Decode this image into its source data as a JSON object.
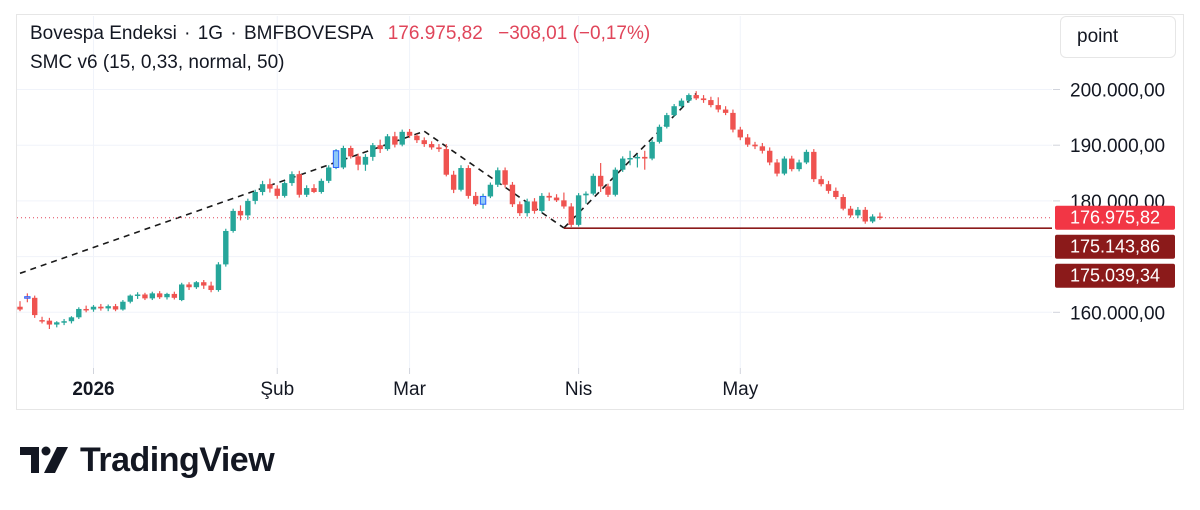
{
  "header": {
    "symbol": "Bovespa Endeksi",
    "interval": "1G",
    "exchange": "BMFBOVESPA",
    "separator": "·",
    "last_price": "176.975,82",
    "change": "−308,01 (−0,17%)"
  },
  "indicator": {
    "label": "SMC v6 (15, 0,33, normal, 50)"
  },
  "unit_button": {
    "label": "point"
  },
  "brand": {
    "name": "TradingView"
  },
  "colors": {
    "up": "#26a69a",
    "down": "#ef5350",
    "bos": "#1a1a1a",
    "level": "#8b1a1a",
    "price_line": "#e0455a"
  },
  "chart_data": {
    "type": "candlestick",
    "ylim": [
      150000,
      203500
    ],
    "y_ticks": [
      160000,
      180000,
      190000,
      200000
    ],
    "y_tick_labels": [
      "160.000,00",
      "180.000,00",
      "190.000,00",
      "200.000,00"
    ],
    "x_ticks": [
      {
        "index": 10,
        "label": "2026",
        "bold": true
      },
      {
        "index": 35,
        "label": "Şub",
        "bold": false
      },
      {
        "index": 53,
        "label": "Mar",
        "bold": false
      },
      {
        "index": 76,
        "label": "Nis",
        "bold": false
      },
      {
        "index": 98,
        "label": "May",
        "bold": false
      }
    ],
    "price_labels": [
      {
        "label": "176.975,82",
        "value": 176975.82,
        "style": "last"
      },
      {
        "label": "175.143,86",
        "value": 175143.86,
        "style": "level"
      },
      {
        "label": "175.039,34",
        "value": 175039.34,
        "style": "level"
      }
    ],
    "candles": [
      [
        161000,
        162000,
        160200,
        160500
      ],
      [
        162800,
        163400,
        161800,
        162600
      ],
      [
        162600,
        163000,
        159000,
        159500
      ],
      [
        158600,
        159200,
        158000,
        158500
      ],
      [
        158500,
        159000,
        157000,
        157800
      ],
      [
        157800,
        158400,
        157300,
        158200
      ],
      [
        158200,
        158800,
        157700,
        158400
      ],
      [
        158400,
        159300,
        158000,
        159100
      ],
      [
        159100,
        160900,
        158800,
        160600
      ],
      [
        160600,
        161200,
        160000,
        160500
      ],
      [
        160500,
        161300,
        160100,
        161000
      ],
      [
        161000,
        161500,
        160300,
        160700
      ],
      [
        160700,
        161400,
        160200,
        161100
      ],
      [
        161100,
        161500,
        160200,
        160500
      ],
      [
        160500,
        162200,
        160300,
        161900
      ],
      [
        161900,
        163200,
        161600,
        163000
      ],
      [
        163000,
        163600,
        162400,
        163200
      ],
      [
        163200,
        163500,
        162200,
        162500
      ],
      [
        162500,
        163700,
        162200,
        163400
      ],
      [
        163400,
        163800,
        162400,
        162700
      ],
      [
        162700,
        163500,
        162300,
        163300
      ],
      [
        163300,
        163700,
        162300,
        162600
      ],
      [
        162200,
        165300,
        162000,
        165000
      ],
      [
        165000,
        165400,
        164000,
        164500
      ],
      [
        164500,
        165600,
        164200,
        165400
      ],
      [
        165400,
        165800,
        164200,
        164800
      ],
      [
        164800,
        165500,
        163600,
        164000
      ],
      [
        164000,
        169000,
        163700,
        168600
      ],
      [
        168600,
        175000,
        168200,
        174600
      ],
      [
        174600,
        178600,
        174300,
        178200
      ],
      [
        178200,
        179200,
        176500,
        177400
      ],
      [
        177400,
        180400,
        176600,
        180000
      ],
      [
        180000,
        182000,
        179400,
        181600
      ],
      [
        181600,
        183600,
        181000,
        183000
      ],
      [
        183000,
        184000,
        181500,
        182200
      ],
      [
        182200,
        182800,
        180400,
        180900
      ],
      [
        180900,
        183500,
        180600,
        183200
      ],
      [
        183200,
        185300,
        182700,
        184800
      ],
      [
        184800,
        185400,
        180600,
        181100
      ],
      [
        181100,
        182800,
        180700,
        182300
      ],
      [
        182300,
        183000,
        181400,
        181600
      ],
      [
        181600,
        184000,
        181300,
        183600
      ],
      [
        183600,
        186400,
        183200,
        186000
      ],
      [
        186000,
        189300,
        185700,
        189000
      ],
      [
        186000,
        189900,
        185700,
        189500
      ],
      [
        189500,
        189900,
        187600,
        188000
      ],
      [
        188000,
        188500,
        185500,
        186500
      ],
      [
        186500,
        188400,
        185400,
        187900
      ],
      [
        187900,
        190400,
        187200,
        190000
      ],
      [
        190000,
        191000,
        188600,
        189300
      ],
      [
        189300,
        192000,
        189000,
        191600
      ],
      [
        191600,
        192400,
        189600,
        190100
      ],
      [
        190100,
        192800,
        189800,
        192400
      ],
      [
        192400,
        192900,
        191300,
        191700
      ],
      [
        191700,
        192000,
        190400,
        190900
      ],
      [
        190900,
        191400,
        189700,
        190200
      ],
      [
        190200,
        190700,
        189200,
        189600
      ],
      [
        189600,
        190200,
        188800,
        189300
      ],
      [
        189300,
        190200,
        184400,
        184700
      ],
      [
        184700,
        185400,
        181400,
        182000
      ],
      [
        182000,
        186400,
        181700,
        185900
      ],
      [
        185900,
        186400,
        180400,
        180900
      ],
      [
        180900,
        181600,
        179100,
        179400
      ],
      [
        179400,
        181300,
        178600,
        180800
      ],
      [
        180800,
        183300,
        180500,
        182900
      ],
      [
        182900,
        186000,
        182500,
        185500
      ],
      [
        185500,
        186000,
        182400,
        182900
      ],
      [
        182900,
        183400,
        178900,
        179400
      ],
      [
        179400,
        179900,
        177300,
        177800
      ],
      [
        177800,
        180400,
        177200,
        179900
      ],
      [
        179900,
        180500,
        177700,
        178200
      ],
      [
        178200,
        181400,
        177900,
        180900
      ],
      [
        180900,
        181500,
        180000,
        180600
      ],
      [
        180600,
        181200,
        179800,
        180100
      ],
      [
        180100,
        181500,
        178600,
        179000
      ],
      [
        179000,
        179600,
        175300,
        175700
      ],
      [
        175700,
        181400,
        175400,
        181000
      ],
      [
        181000,
        181700,
        179500,
        181300
      ],
      [
        181300,
        184900,
        181000,
        184500
      ],
      [
        184500,
        186800,
        181600,
        182600
      ],
      [
        182600,
        183100,
        180700,
        181100
      ],
      [
        181100,
        186000,
        180800,
        185600
      ],
      [
        185600,
        188000,
        185200,
        187600
      ],
      [
        187600,
        189000,
        186400,
        187700
      ],
      [
        187700,
        188400,
        186000,
        187900
      ],
      [
        187900,
        189000,
        185600,
        187600
      ],
      [
        187600,
        191000,
        187300,
        190600
      ],
      [
        190600,
        193700,
        190300,
        193300
      ],
      [
        193300,
        195800,
        193000,
        195400
      ],
      [
        195400,
        197400,
        195100,
        197000
      ],
      [
        197000,
        198400,
        196700,
        198000
      ],
      [
        198000,
        199300,
        197600,
        199000
      ],
      [
        199000,
        199700,
        198100,
        198400
      ],
      [
        198400,
        199000,
        197600,
        198100
      ],
      [
        198100,
        198700,
        196800,
        197200
      ],
      [
        197200,
        198600,
        195900,
        196400
      ],
      [
        196400,
        197000,
        195400,
        195800
      ],
      [
        195800,
        196400,
        192300,
        192800
      ],
      [
        192800,
        193300,
        190900,
        191400
      ],
      [
        191400,
        192000,
        189700,
        190100
      ],
      [
        190100,
        190600,
        189300,
        189800
      ],
      [
        189800,
        190400,
        188500,
        189000
      ],
      [
        189000,
        189600,
        186400,
        186900
      ],
      [
        186900,
        187500,
        184400,
        184900
      ],
      [
        184900,
        188000,
        184600,
        187600
      ],
      [
        187600,
        188100,
        185300,
        185700
      ],
      [
        185700,
        187400,
        185300,
        186900
      ],
      [
        186900,
        189200,
        186600,
        188800
      ],
      [
        188800,
        189300,
        183400,
        183900
      ],
      [
        183900,
        184500,
        182600,
        183000
      ],
      [
        183000,
        183600,
        181300,
        181800
      ],
      [
        181800,
        182400,
        180300,
        180700
      ],
      [
        180700,
        181200,
        178300,
        178600
      ],
      [
        178600,
        179100,
        177000,
        177400
      ],
      [
        177400,
        178900,
        176900,
        178400
      ],
      [
        178400,
        178900,
        175900,
        176300
      ],
      [
        176300,
        177600,
        176000,
        177200
      ],
      [
        177200,
        177900,
        176600,
        176976
      ]
    ],
    "outlined_candles": [
      1,
      43,
      63
    ],
    "trend_lines": [
      {
        "from": {
          "index": 0,
          "value": 167000
        },
        "to": {
          "index": 55,
          "value": 192500
        }
      },
      {
        "from": {
          "index": 55,
          "value": 192500
        },
        "to": {
          "index": 74,
          "value": 175150
        }
      },
      {
        "from": {
          "index": 74,
          "value": 175150
        },
        "to": {
          "index": 92,
          "value": 199300
        }
      }
    ],
    "level_line": {
      "from_index": 74,
      "value": 175100
    },
    "last_price_value": 176975.82
  }
}
